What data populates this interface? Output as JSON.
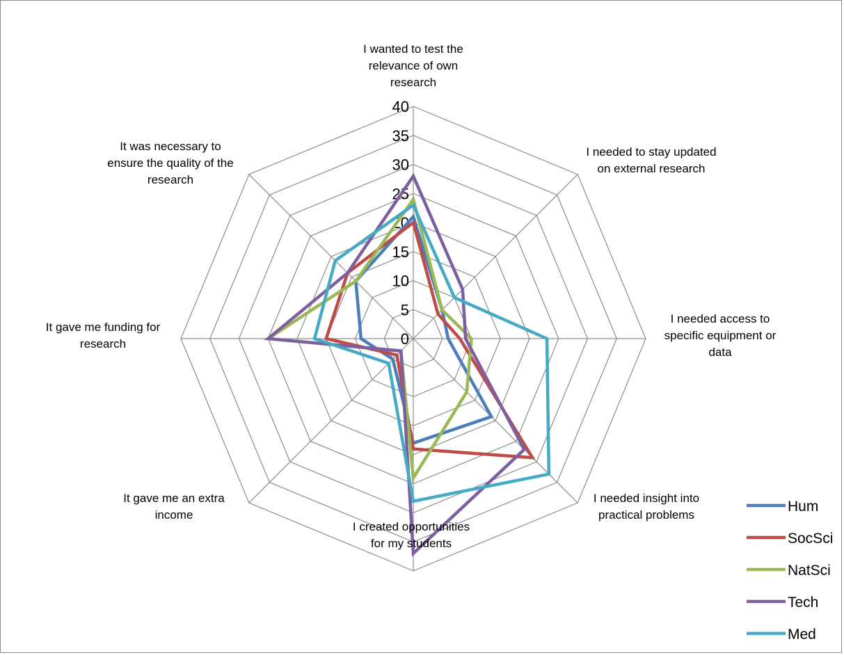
{
  "chart_data": {
    "type": "radar",
    "title": "",
    "categories": [
      "I wanted to test the relevance of own research",
      "I needed to stay updated on external research",
      "I needed access to specific equipment or data",
      "I needed insight into practical problems",
      "I created opportunities for my students",
      "It gave me an extra income",
      "It gave me funding for research",
      "It was necessary to ensure the quality of the research"
    ],
    "category_lines": [
      [
        "I wanted to test the",
        "relevance of own",
        "research"
      ],
      [
        "I needed to stay updated",
        "on external research"
      ],
      [
        "I needed access to",
        "specific equipment or",
        "data"
      ],
      [
        "I needed insight into",
        "practical problems"
      ],
      [
        "I created opportunities",
        "for my students"
      ],
      [
        "It gave me an extra",
        "income"
      ],
      [
        "It gave me funding for",
        "research"
      ],
      [
        "It was necessary to",
        "ensure the quality of the",
        "research"
      ]
    ],
    "rlim": [
      0,
      40
    ],
    "ticks": [
      "0",
      "5",
      "10",
      "15",
      "20",
      "25",
      "30",
      "35",
      "40"
    ],
    "grid": true,
    "legend_position": "bottom-right",
    "series": [
      {
        "name": "Hum",
        "color": "#4a7ebb",
        "values": [
          21,
          7,
          6,
          19,
          18,
          5,
          9,
          14
        ]
      },
      {
        "name": "SocSci",
        "color": "#be4b48",
        "values": [
          20,
          6,
          8,
          29,
          19,
          4,
          15,
          16
        ]
      },
      {
        "name": "NatSci",
        "color": "#98b954",
        "values": [
          24,
          7,
          10,
          13,
          24,
          3,
          25,
          14
        ]
      },
      {
        "name": "Tech",
        "color": "#7d5fa0",
        "values": [
          28,
          12,
          9,
          27,
          37,
          3,
          25,
          16
        ]
      },
      {
        "name": "Med",
        "color": "#46aac5",
        "values": [
          23,
          10,
          23,
          33,
          28,
          6,
          17,
          19
        ]
      }
    ]
  }
}
